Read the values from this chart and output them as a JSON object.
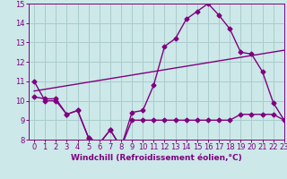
{
  "bg_color": "#cce8e8",
  "line_color": "#800080",
  "grid_color": "#aacccc",
  "x_values": [
    0,
    1,
    2,
    3,
    4,
    5,
    6,
    7,
    8,
    9,
    10,
    11,
    12,
    13,
    14,
    15,
    16,
    17,
    18,
    19,
    20,
    21,
    22,
    23
  ],
  "line1": [
    11.0,
    10.0,
    10.0,
    9.3,
    9.5,
    8.1,
    7.8,
    8.5,
    7.6,
    9.4,
    9.5,
    10.8,
    12.8,
    13.2,
    14.2,
    14.6,
    15.0,
    14.4,
    13.7,
    12.5,
    12.4,
    11.5,
    9.9,
    9.0
  ],
  "line2": [
    10.2,
    10.1,
    10.1,
    9.3,
    9.5,
    8.1,
    7.8,
    8.5,
    7.6,
    9.0,
    9.0,
    9.0,
    9.0,
    9.0,
    9.0,
    9.0,
    9.0,
    9.0,
    9.0,
    9.3,
    9.3,
    9.3,
    9.3,
    9.0
  ],
  "line3_x": [
    0,
    23
  ],
  "line3_y": [
    10.5,
    12.6
  ],
  "ylim": [
    8,
    15
  ],
  "xlim": [
    -0.5,
    23
  ],
  "yticks": [
    8,
    9,
    10,
    11,
    12,
    13,
    14,
    15
  ],
  "xticks": [
    0,
    1,
    2,
    3,
    4,
    5,
    6,
    7,
    8,
    9,
    10,
    11,
    12,
    13,
    14,
    15,
    16,
    17,
    18,
    19,
    20,
    21,
    22,
    23
  ],
  "xlabel": "Windchill (Refroidissement éolien,°C)",
  "marker": "D",
  "markersize": 2.5,
  "linewidth": 1.0,
  "xlabel_fontsize": 6.5,
  "tick_fontsize": 6
}
